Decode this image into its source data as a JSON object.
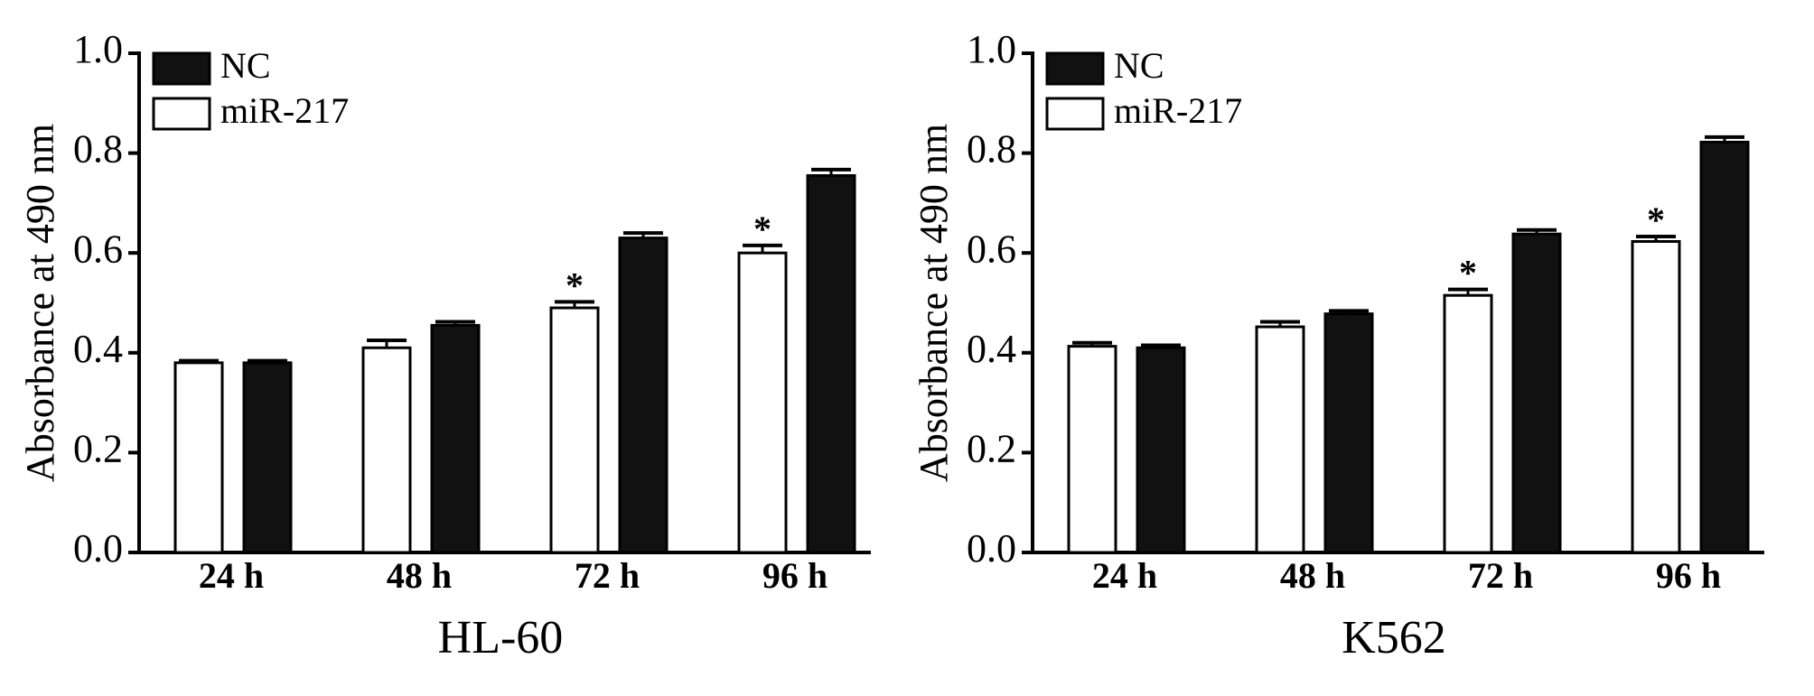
{
  "chart_data": [
    {
      "type": "bar",
      "title": "HL-60",
      "y_label": "Absorbance at 490 nm",
      "categories": [
        "24 h",
        "48 h",
        "72 h",
        "96 h"
      ],
      "series": [
        {
          "name": "NC",
          "color": "#111111",
          "values": [
            0.38,
            0.455,
            0.63,
            0.755
          ],
          "errors": [
            0.004,
            0.007,
            0.01,
            0.012
          ],
          "significance": [
            null,
            null,
            null,
            null
          ]
        },
        {
          "name": "miR-217",
          "color": "#ffffff",
          "values": [
            0.38,
            0.41,
            0.49,
            0.6
          ],
          "errors": [
            0.004,
            0.015,
            0.012,
            0.015
          ],
          "significance": [
            null,
            null,
            "*",
            "*"
          ]
        }
      ],
      "ylim": [
        0,
        1
      ],
      "yticks": [
        {
          "value": 0,
          "label": "0.0"
        },
        0.2,
        0.4,
        0.6,
        0.8,
        {
          "value": 1,
          "label": "1.0"
        }
      ],
      "legend": "upper-left"
    },
    {
      "type": "bar",
      "title": "K562",
      "y_label": "Absorbance at 490 nm",
      "categories": [
        "24 h",
        "48 h",
        "72 h",
        "96 h"
      ],
      "series": [
        {
          "name": "NC",
          "color": "#111111",
          "values": [
            0.41,
            0.478,
            0.638,
            0.822
          ],
          "errors": [
            0.005,
            0.006,
            0.008,
            0.01
          ],
          "significance": [
            null,
            null,
            null,
            null
          ]
        },
        {
          "name": "miR-217",
          "color": "#ffffff",
          "values": [
            0.413,
            0.452,
            0.515,
            0.623
          ],
          "errors": [
            0.007,
            0.01,
            0.012,
            0.01
          ],
          "significance": [
            null,
            null,
            "*",
            "*"
          ]
        }
      ],
      "ylim": [
        0,
        1
      ],
      "yticks": [
        {
          "value": 0,
          "label": "0.0"
        },
        0.2,
        0.4,
        0.6,
        0.8,
        {
          "value": 1,
          "label": "1.0"
        }
      ],
      "legend": "upper-left"
    }
  ]
}
